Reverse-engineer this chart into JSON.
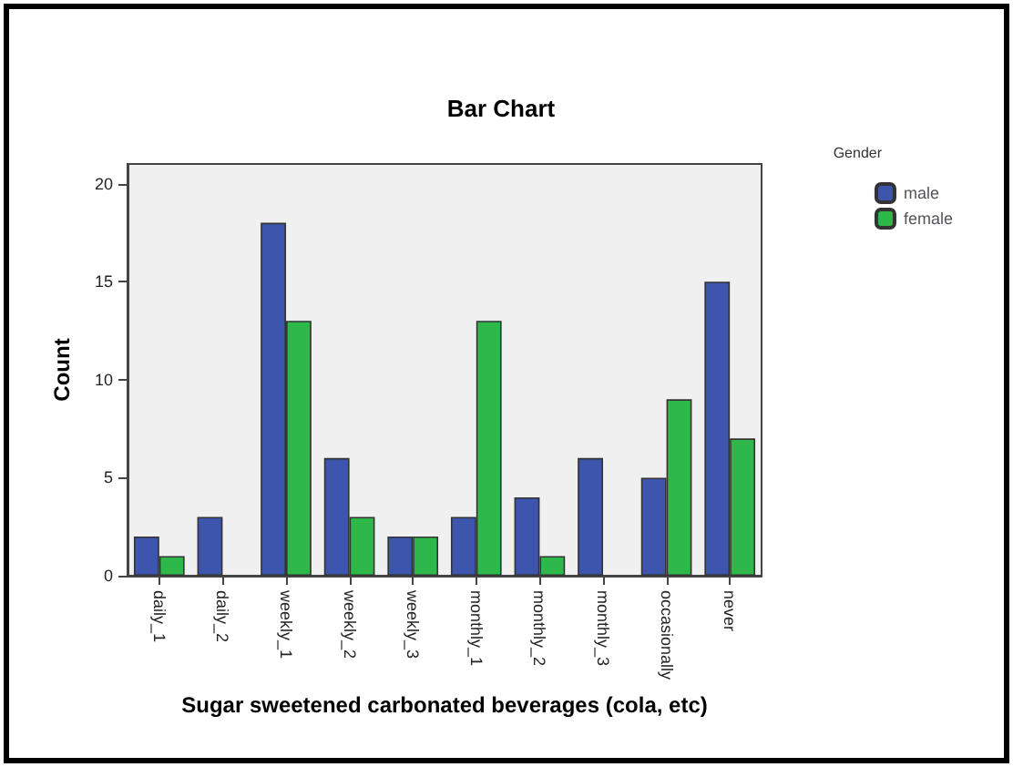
{
  "chart_data": {
    "type": "bar",
    "title": "Bar Chart",
    "xlabel": "Sugar sweetened carbonated beverages (cola, etc)",
    "ylabel": "Count",
    "legend_title": "Gender",
    "categories": [
      "daily_1",
      "daily_2",
      "weekly_1",
      "weekly_2",
      "weekly_3",
      "monthly_1",
      "monthly_2",
      "monthly_3",
      "occasionally",
      "never"
    ],
    "series": [
      {
        "name": "male",
        "color": "#3d55ad",
        "values": [
          2,
          3,
          18,
          6,
          2,
          3,
          4,
          6,
          5,
          15
        ]
      },
      {
        "name": "female",
        "color": "#2eb84a",
        "values": [
          1,
          null,
          13,
          3,
          2,
          13,
          1,
          null,
          9,
          7
        ]
      }
    ],
    "ylim": [
      0,
      21
    ],
    "yticks": [
      0,
      5,
      10,
      15,
      20
    ],
    "grid": false,
    "legend": "top right"
  }
}
